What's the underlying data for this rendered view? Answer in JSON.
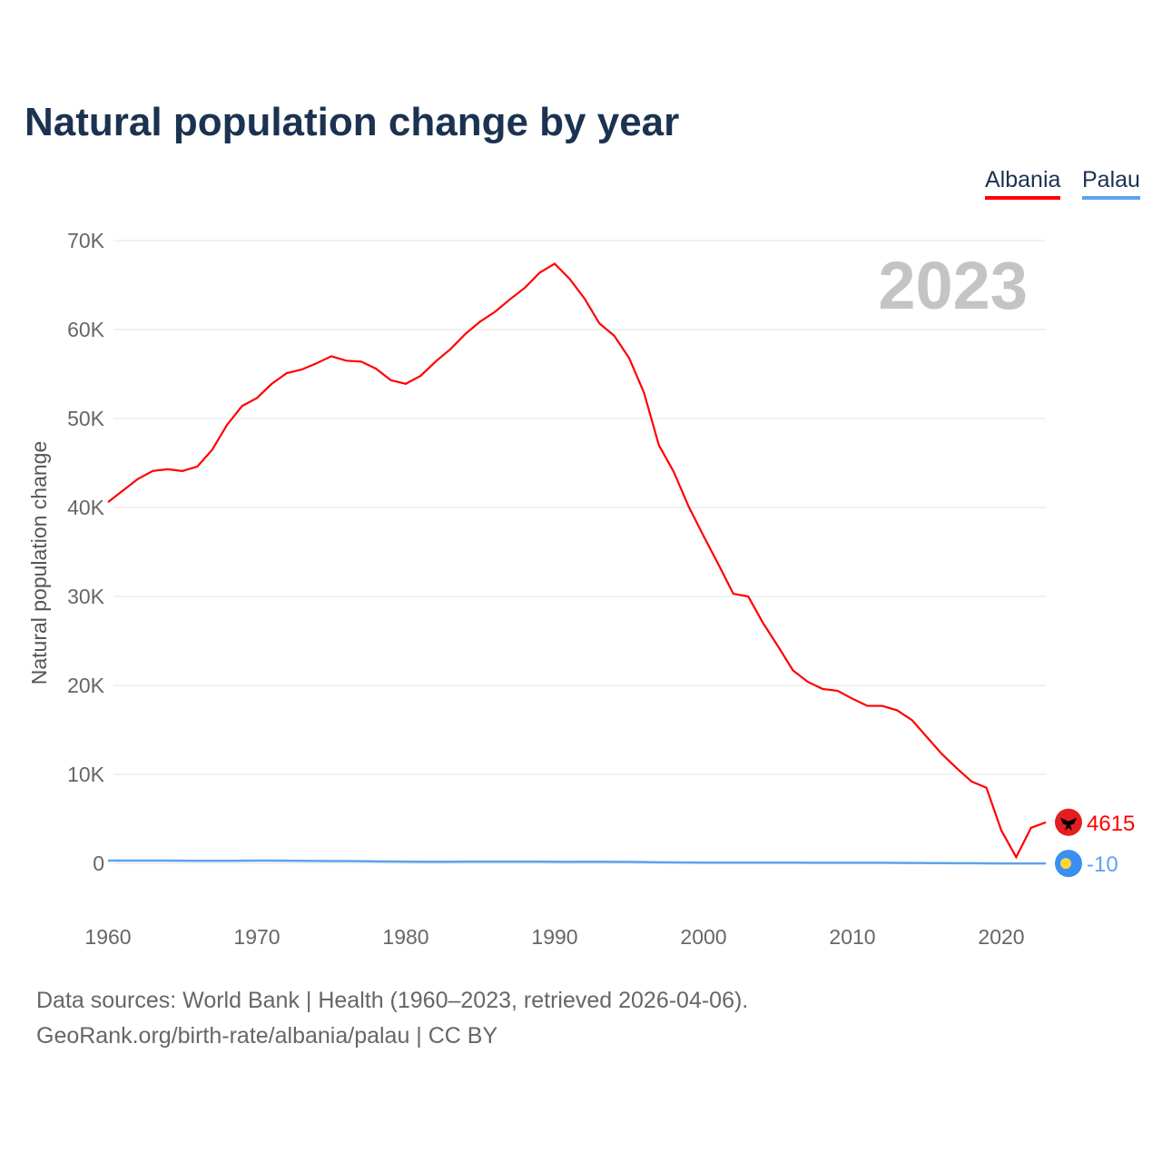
{
  "title": "Natural population change by year",
  "legend": [
    "Albania",
    "Palau"
  ],
  "year_label": "2023",
  "footer": {
    "line1": "Data sources: World Bank | Health (1960–2023, retrieved 2026-04-06).",
    "line2": "GeoRank.org/birth-rate/albania/palau | CC BY"
  },
  "chart_data": {
    "type": "line",
    "title": "Natural population change by year",
    "xlabel": "",
    "ylabel": "Natural population change",
    "xlim": [
      1960,
      2023
    ],
    "ylim": [
      -5000,
      70000
    ],
    "xticks": [
      1960,
      1970,
      1980,
      1990,
      2000,
      2010,
      2020
    ],
    "xtick_labels": [
      "1960",
      "1970",
      "1980",
      "1990",
      "2000",
      "2010",
      "2020"
    ],
    "yticks": [
      0,
      10000,
      20000,
      30000,
      40000,
      50000,
      60000,
      70000
    ],
    "ytick_labels": [
      "0",
      "10K",
      "20K",
      "30K",
      "40K",
      "50K",
      "60K",
      "70K"
    ],
    "grid": true,
    "legend_position": "top-right",
    "x": [
      1960,
      1961,
      1962,
      1963,
      1964,
      1965,
      1966,
      1967,
      1968,
      1969,
      1970,
      1971,
      1972,
      1973,
      1974,
      1975,
      1976,
      1977,
      1978,
      1979,
      1980,
      1981,
      1982,
      1983,
      1984,
      1985,
      1986,
      1987,
      1988,
      1989,
      1990,
      1991,
      1992,
      1993,
      1994,
      1995,
      1996,
      1997,
      1998,
      1999,
      2000,
      2001,
      2002,
      2003,
      2004,
      2005,
      2006,
      2007,
      2008,
      2009,
      2010,
      2011,
      2012,
      2013,
      2014,
      2015,
      2016,
      2017,
      2018,
      2019,
      2020,
      2021,
      2022,
      2023
    ],
    "series": [
      {
        "name": "Albania",
        "color": "#ff0000",
        "end_label": "4615",
        "values": [
          40600,
          41900,
          43200,
          44100,
          44300,
          44100,
          44600,
          46500,
          49300,
          51400,
          52300,
          53900,
          55100,
          55500,
          56200,
          57000,
          56500,
          56400,
          55600,
          54300,
          53900,
          54800,
          56400,
          57800,
          59500,
          60900,
          62000,
          63400,
          64700,
          66400,
          67400,
          65700,
          63500,
          60700,
          59300,
          56800,
          52900,
          47000,
          44000,
          40100,
          36800,
          33600,
          30300,
          30000,
          27000,
          24400,
          21700,
          20400,
          19600,
          19400,
          18500,
          17700,
          17700,
          17200,
          16100,
          14200,
          12300,
          10700,
          9200,
          8500,
          3700,
          700,
          4000,
          4615
        ]
      },
      {
        "name": "Palau",
        "color": "#5ba3ef",
        "end_label": "-10",
        "values": [
          300,
          300,
          300,
          300,
          300,
          290,
          280,
          280,
          280,
          290,
          300,
          300,
          290,
          280,
          270,
          260,
          250,
          240,
          220,
          200,
          190,
          180,
          180,
          180,
          190,
          190,
          190,
          190,
          190,
          190,
          180,
          170,
          180,
          180,
          170,
          160,
          140,
          120,
          100,
          90,
          80,
          80,
          80,
          80,
          80,
          80,
          80,
          70,
          70,
          70,
          60,
          60,
          60,
          50,
          40,
          30,
          20,
          10,
          10,
          0,
          -10,
          -10,
          -10,
          -10
        ]
      }
    ]
  }
}
